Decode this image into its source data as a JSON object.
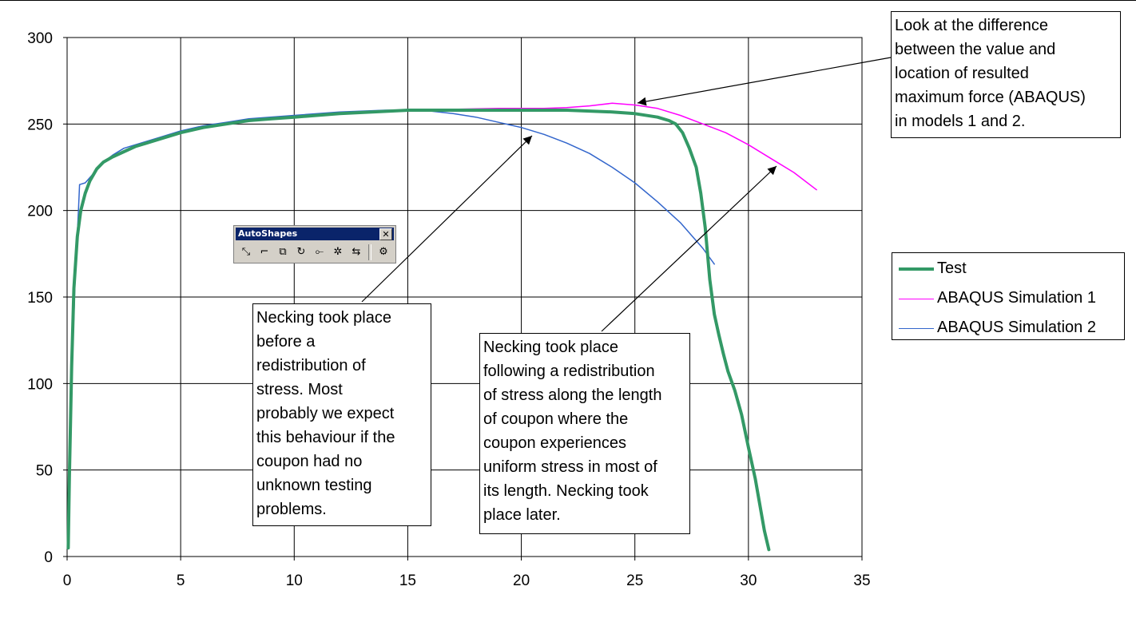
{
  "chart_data": {
    "type": "line",
    "title": "",
    "xlabel": "",
    "ylabel": "",
    "xlim": [
      0,
      35
    ],
    "ylim": [
      0,
      300
    ],
    "x_ticks": [
      "0",
      "5",
      "10",
      "15",
      "20",
      "25",
      "30",
      "35"
    ],
    "y_ticks": [
      "0",
      "50",
      "100",
      "150",
      "200",
      "250",
      "300"
    ],
    "grid": true,
    "legend_position": "right",
    "series": [
      {
        "name": "Test",
        "color": "#339966",
        "points": [
          [
            0.05,
            5
          ],
          [
            0.1,
            45
          ],
          [
            0.2,
            110
          ],
          [
            0.3,
            155
          ],
          [
            0.45,
            185
          ],
          [
            0.6,
            200
          ],
          [
            0.8,
            210
          ],
          [
            1.0,
            217
          ],
          [
            1.3,
            224
          ],
          [
            1.6,
            228
          ],
          [
            2.0,
            231
          ],
          [
            2.5,
            234
          ],
          [
            3.0,
            237
          ],
          [
            3.5,
            239
          ],
          [
            4.0,
            241
          ],
          [
            5,
            245
          ],
          [
            6,
            248
          ],
          [
            7,
            250
          ],
          [
            8,
            252
          ],
          [
            9,
            253
          ],
          [
            10,
            254
          ],
          [
            12,
            256
          ],
          [
            15,
            258
          ],
          [
            18,
            258
          ],
          [
            20,
            258
          ],
          [
            22,
            258
          ],
          [
            24,
            257
          ],
          [
            25,
            256
          ],
          [
            26,
            254
          ],
          [
            26.5,
            252
          ],
          [
            26.8,
            250
          ],
          [
            27.1,
            245
          ],
          [
            27.4,
            236
          ],
          [
            27.7,
            225
          ],
          [
            27.9,
            210
          ],
          [
            28.1,
            190
          ],
          [
            28.3,
            160
          ],
          [
            28.5,
            140
          ],
          [
            28.7,
            128
          ],
          [
            28.9,
            117
          ],
          [
            29.1,
            107
          ],
          [
            29.4,
            96
          ],
          [
            29.7,
            82
          ],
          [
            30.0,
            63
          ],
          [
            30.3,
            45
          ],
          [
            30.5,
            30
          ],
          [
            30.7,
            15
          ],
          [
            30.9,
            4
          ]
        ]
      },
      {
        "name": "ABAQUS Simulation 1",
        "color": "#ff00ff",
        "points": [
          [
            15,
            258.5
          ],
          [
            17,
            258.5
          ],
          [
            19,
            259
          ],
          [
            21,
            259
          ],
          [
            22,
            259.5
          ],
          [
            23,
            260.5
          ],
          [
            24,
            262
          ],
          [
            25,
            261
          ],
          [
            26,
            259
          ],
          [
            27,
            255
          ],
          [
            28,
            250
          ],
          [
            29,
            245
          ],
          [
            30,
            238
          ],
          [
            31,
            230
          ],
          [
            32,
            222
          ],
          [
            33,
            212
          ]
        ]
      },
      {
        "name": "ABAQUS Simulation 2",
        "color": "#3366cc",
        "points": [
          [
            0.05,
            5
          ],
          [
            0.2,
            100
          ],
          [
            0.35,
            160
          ],
          [
            0.5,
            200
          ],
          [
            0.55,
            215
          ],
          [
            0.8,
            216
          ],
          [
            1.2,
            222
          ],
          [
            1.6,
            228
          ],
          [
            2.0,
            232
          ],
          [
            2.5,
            236
          ],
          [
            3,
            238
          ],
          [
            4,
            242
          ],
          [
            5,
            246
          ],
          [
            6,
            249
          ],
          [
            7,
            251
          ],
          [
            8,
            253
          ],
          [
            10,
            255
          ],
          [
            12,
            257
          ],
          [
            14,
            258
          ],
          [
            15,
            258
          ],
          [
            16,
            257.5
          ],
          [
            17,
            256
          ],
          [
            18,
            254
          ],
          [
            19,
            251
          ],
          [
            20,
            248
          ],
          [
            21,
            244
          ],
          [
            22,
            239
          ],
          [
            23,
            233
          ],
          [
            24,
            225
          ],
          [
            25,
            216
          ],
          [
            26,
            205
          ],
          [
            27,
            193
          ],
          [
            28,
            178
          ],
          [
            28.5,
            169
          ]
        ]
      }
    ],
    "annotations": [
      {
        "text": "Necking took place\nbefore a\nredistribution of\nstress. Most\nprobably we expect\nthis behaviour if the\ncoupon had no\nunknown testing\nproblems."
      },
      {
        "text": "Necking took place\nfollowing a redistribution\nof stress along the length\nof coupon where the\ncoupon experiences\nuniform stress in most of\nits length. Necking took\nplace later."
      },
      {
        "text": "Look at the difference\nbetween the value and\nlocation of resulted\nmaximum force (ABAQUS)\nin models 1 and 2."
      }
    ]
  },
  "legend": {
    "items": [
      {
        "label": "Test",
        "color": "#339966"
      },
      {
        "label": "ABAQUS Simulation 1",
        "color": "#ff00ff"
      },
      {
        "label": "ABAQUS Simulation 2",
        "color": "#3366cc"
      }
    ]
  },
  "toolbar": {
    "title": "AutoShapes",
    "close_label": "✕",
    "buttons": [
      {
        "icon": "connector-straight-icon",
        "glyph": "⤡"
      },
      {
        "icon": "connector-elbow-icon",
        "glyph": "⌐"
      },
      {
        "icon": "reroute-icon",
        "glyph": "⧉"
      },
      {
        "icon": "connector-curved-icon",
        "glyph": "↻"
      },
      {
        "icon": "connector-elbow-arrow-icon",
        "glyph": "⟜"
      },
      {
        "icon": "connector-star-icon",
        "glyph": "✲"
      },
      {
        "icon": "connector-curved-arrow-icon",
        "glyph": "⇆"
      },
      {
        "icon": "toolbar-options-icon",
        "glyph": "⚙"
      }
    ]
  }
}
